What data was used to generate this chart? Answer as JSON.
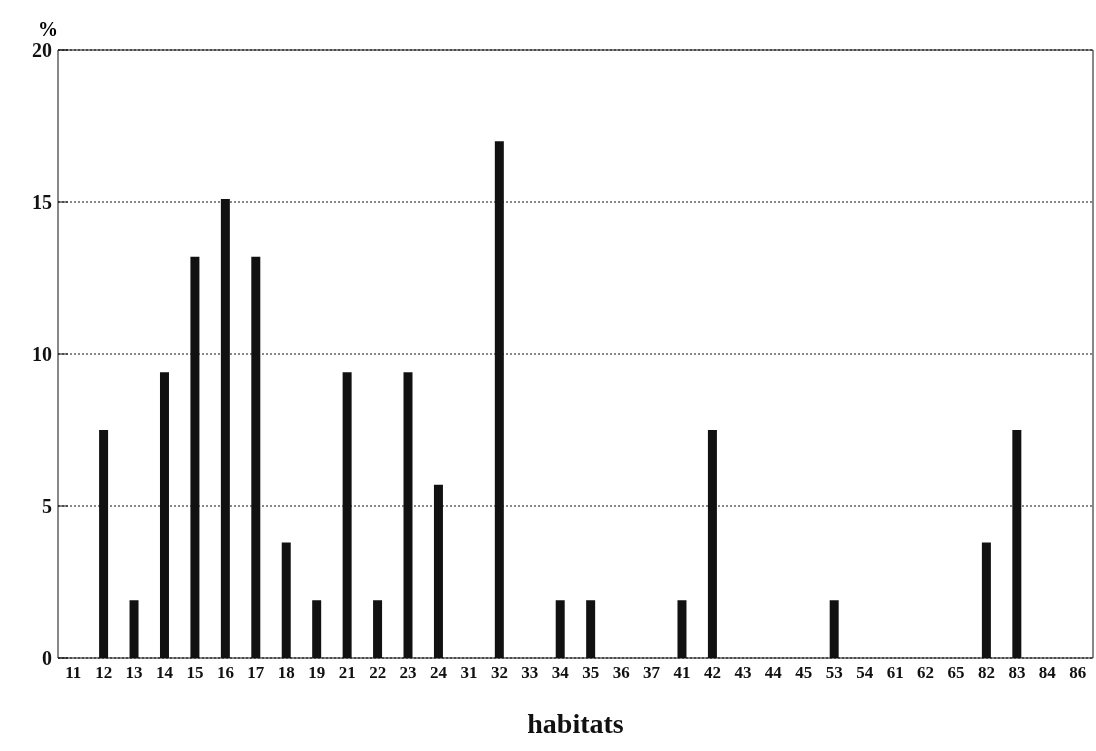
{
  "chart_data": {
    "type": "bar",
    "xlabel": "habitats",
    "ylabel": "%",
    "categories": [
      "11",
      "12",
      "13",
      "14",
      "15",
      "16",
      "17",
      "18",
      "19",
      "21",
      "22",
      "23",
      "24",
      "31",
      "32",
      "33",
      "34",
      "35",
      "36",
      "37",
      "41",
      "42",
      "43",
      "44",
      "45",
      "53",
      "54",
      "61",
      "62",
      "65",
      "82",
      "83",
      "84",
      "86"
    ],
    "values": [
      0,
      7.5,
      1.9,
      9.4,
      13.2,
      15.1,
      13.2,
      3.8,
      1.9,
      9.4,
      1.9,
      9.4,
      5.7,
      0,
      17.0,
      0,
      1.9,
      1.9,
      0,
      0,
      1.9,
      7.5,
      0,
      0,
      0,
      1.9,
      0,
      0,
      0,
      0,
      3.8,
      7.5,
      0,
      0
    ],
    "color": "#111111",
    "ylim": [
      0,
      20
    ],
    "yticks": [
      0,
      5,
      10,
      15,
      20
    ],
    "grid": "y",
    "legend": false
  }
}
